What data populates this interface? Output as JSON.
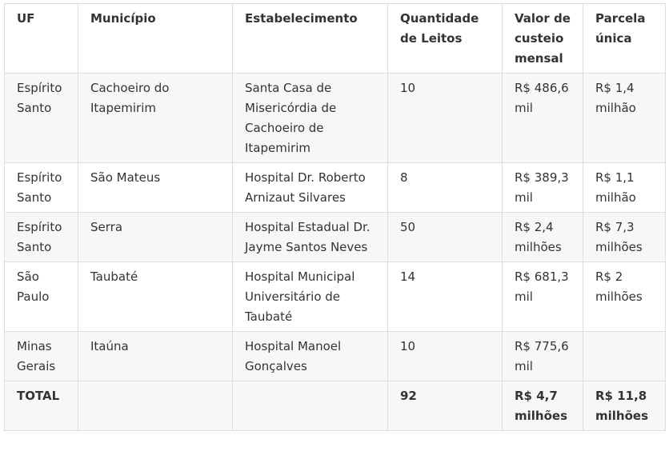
{
  "table": {
    "headers": [
      "UF",
      "Município",
      "Estabelecimento",
      "Quantidade de Leitos",
      "Valor de custeio mensal",
      "Parcela única"
    ],
    "rows": [
      [
        "Espírito Santo",
        "Cachoeiro do Itapemirim",
        "Santa Casa de Misericórdia de Cachoeiro de Itapemirim",
        "10",
        "R$ 486,6 mil",
        "R$ 1,4 milhão"
      ],
      [
        "Espírito Santo",
        "São Mateus",
        "Hospital Dr. Roberto Arnizaut Silvares",
        "8",
        "R$ 389,3 mil",
        "R$ 1,1 milhão"
      ],
      [
        "Espírito Santo",
        "Serra",
        "Hospital Estadual Dr. Jayme Santos Neves",
        "50",
        "R$ 2,4 milhões",
        "R$ 7,3 milhões"
      ],
      [
        "São Paulo",
        "Taubaté",
        "Hospital Municipal Universitário de Taubaté",
        "14",
        "R$ 681,3 mil",
        "R$ 2 milhões"
      ],
      [
        "Minas Gerais",
        "Itaúna",
        "Hospital Manoel Gonçalves",
        "10",
        "R$ 775,6 mil",
        ""
      ]
    ],
    "total": [
      "TOTAL",
      "",
      "",
      "92",
      "R$ 4,7 milhões",
      "R$ 11,8 milhões"
    ]
  }
}
